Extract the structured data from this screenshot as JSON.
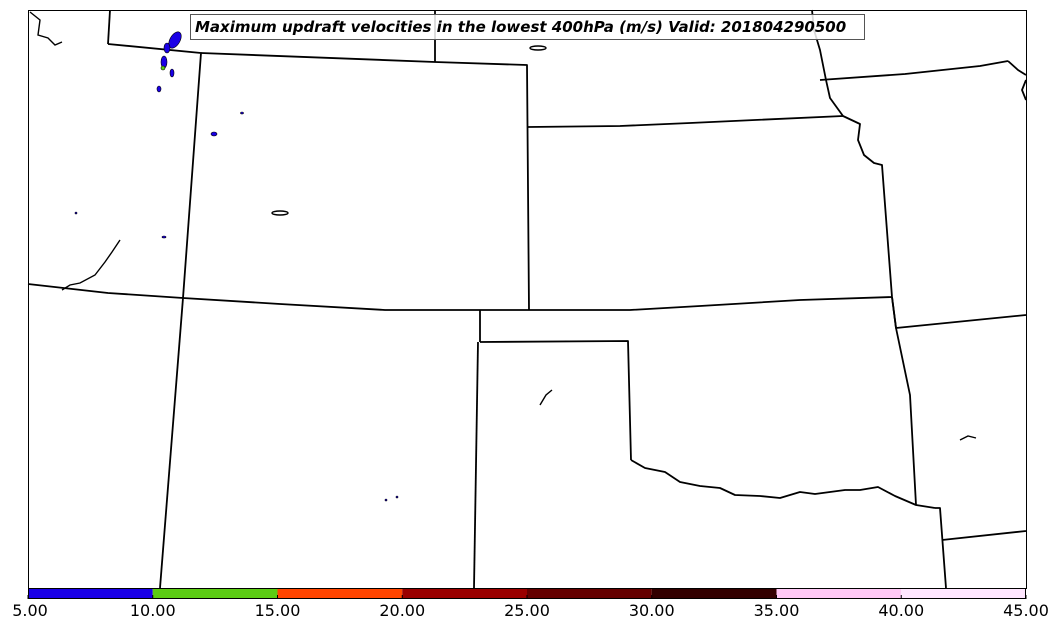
{
  "map": {
    "title": "Maximum updraft velocities in the lowest 400hPa (m/s) Valid: 201804290500"
  },
  "colorbar": {
    "segments": [
      {
        "from": 5,
        "to": 10,
        "color": "#1a00e6"
      },
      {
        "from": 10,
        "to": 15,
        "color": "#5ccc14"
      },
      {
        "from": 15,
        "to": 20,
        "color": "#ff4500"
      },
      {
        "from": 20,
        "to": 25,
        "color": "#9a0000"
      },
      {
        "from": 25,
        "to": 30,
        "color": "#640000"
      },
      {
        "from": 30,
        "to": 35,
        "color": "#320000"
      },
      {
        "from": 35,
        "to": 40,
        "color": "#ffc8f5"
      },
      {
        "from": 40,
        "to": 45,
        "color": "#ffe6ff"
      }
    ],
    "ticks": [
      "5.00",
      "10.00",
      "15.00",
      "20.00",
      "25.00",
      "30.00",
      "35.00",
      "40.00",
      "45.00"
    ]
  },
  "colors": {
    "boundary": "#000000",
    "updraft_primary": "#1a00e6",
    "updraft_secondary": "#5ccc14"
  }
}
